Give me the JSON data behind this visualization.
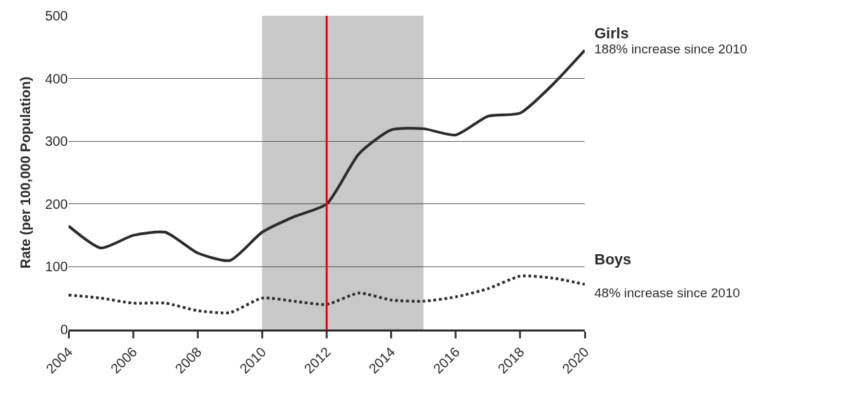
{
  "chart_data": {
    "type": "line",
    "ylabel": "Rate (per 100,000 Population)",
    "x": [
      2004,
      2005,
      2006,
      2007,
      2008,
      2009,
      2010,
      2011,
      2012,
      2013,
      2014,
      2015,
      2016,
      2017,
      2018,
      2019,
      2020
    ],
    "series": [
      {
        "name": "Girls",
        "color": "#2b2b2b",
        "line_style": "solid",
        "values": [
          165,
          130,
          150,
          155,
          122,
          110,
          155,
          180,
          200,
          280,
          318,
          320,
          310,
          340,
          345,
          390,
          445
        ]
      },
      {
        "name": "Boys",
        "color": "#2b2b2b",
        "line_style": "dotted",
        "values": [
          55,
          50,
          42,
          42,
          30,
          27,
          50,
          45,
          40,
          58,
          47,
          45,
          52,
          65,
          85,
          82,
          72
        ]
      }
    ],
    "annotations": [
      {
        "text": "188% increase since 2010",
        "x": 2020,
        "y": 445
      },
      {
        "text": "48% increase since 2010",
        "x": 2020,
        "y": 72
      }
    ],
    "xlim": [
      2004,
      2020
    ],
    "xticks": [
      2004,
      2006,
      2008,
      2010,
      2012,
      2014,
      2016,
      2018,
      2020
    ],
    "ylim": [
      0,
      500
    ],
    "yticks": [
      0,
      100,
      200,
      300,
      400,
      500
    ],
    "bands": [
      {
        "axis": "x",
        "from": 2010,
        "to": 2015,
        "color": "#c8c8c8"
      }
    ],
    "ref_lines": [
      {
        "axis": "x",
        "value": 2012,
        "color": "#ff0000",
        "line_style": "solid"
      }
    ],
    "grid": "y",
    "legend": false,
    "marker": "none"
  }
}
